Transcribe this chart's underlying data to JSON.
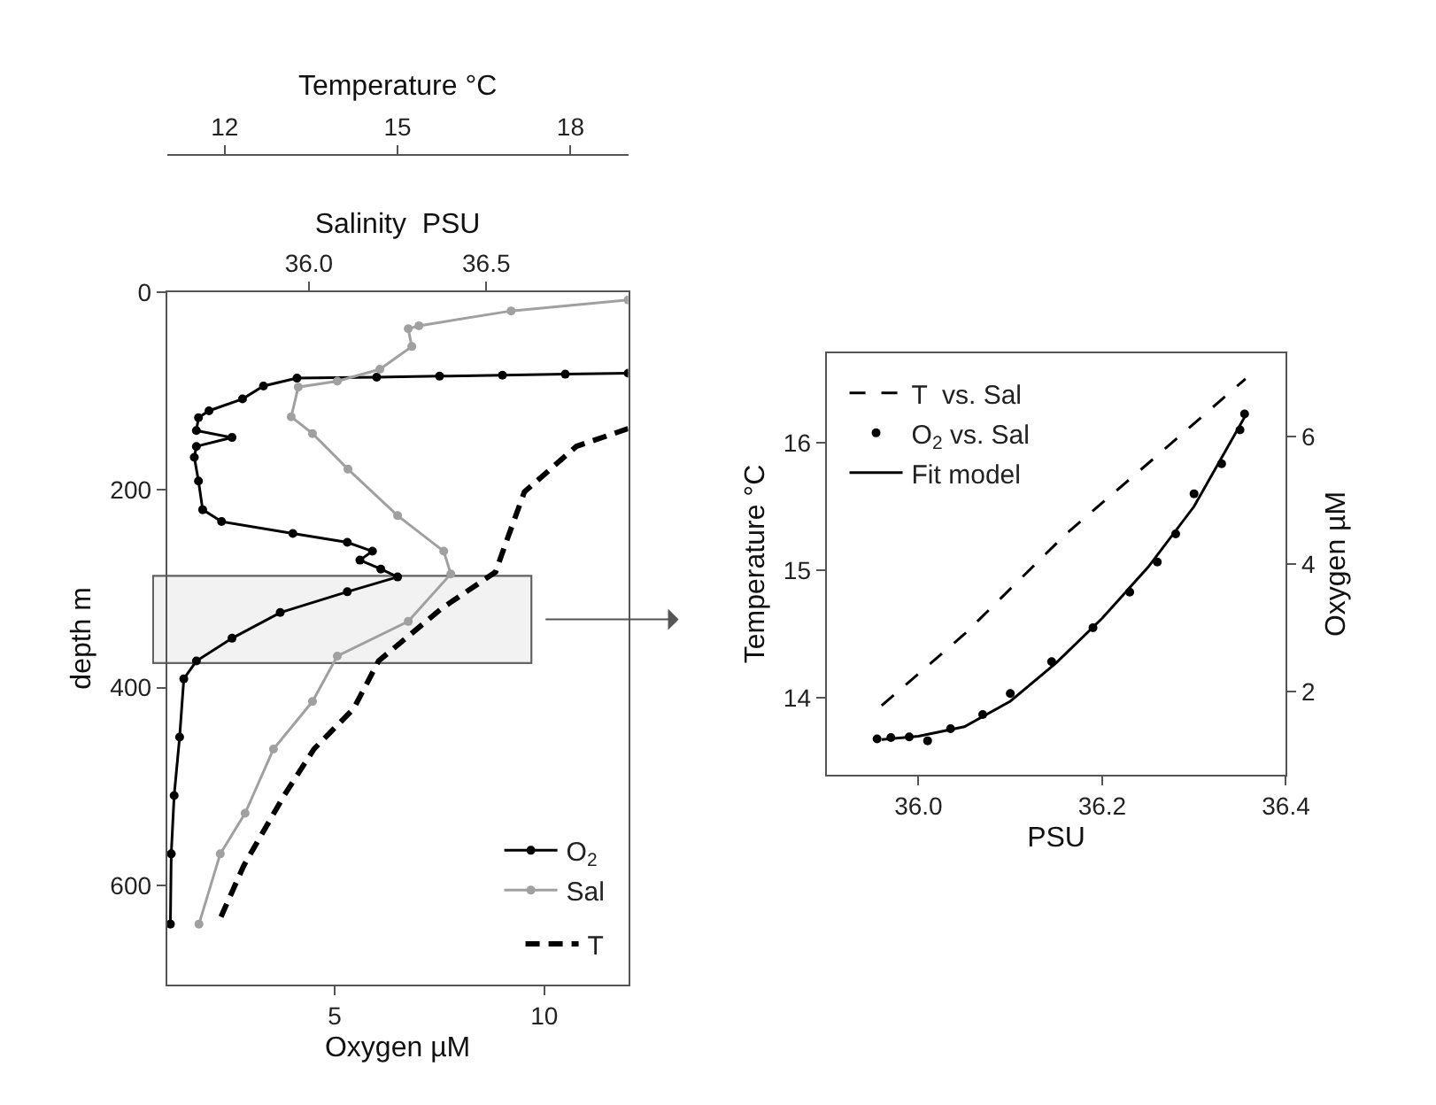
{
  "chart_data": [
    {
      "type": "line",
      "xlabel": "Oxygen µM",
      "ylabel": "depth m",
      "x2label": "Salinity  PSU",
      "xlim": [
        1,
        12
      ],
      "xticks": [
        5,
        10
      ],
      "x2lim": [
        35.6,
        36.9
      ],
      "x2ticks": [
        {
          "value": 36,
          "label": "36.0"
        },
        36.5
      ],
      "ylim": [
        700,
        0
      ],
      "yticks": [
        0,
        200,
        400,
        600
      ],
      "legend": "bottom right",
      "grid": false,
      "bands": [
        {
          "axis": "y",
          "from": 287,
          "to": 375,
          "color": "#606060"
        }
      ],
      "series": [
        {
          "name": "O$_{2}$",
          "color": "#000000",
          "marker": "circle",
          "line_style": "solid",
          "x": [
            12.0,
            10.5,
            9.0,
            7.5,
            6.0,
            4.1,
            3.3,
            2.8,
            2.0,
            1.75,
            1.7,
            2.55,
            1.7,
            1.65,
            1.75,
            1.85,
            2.3,
            4.0,
            5.3,
            5.9,
            5.6,
            6.1,
            6.5,
            5.3,
            3.7,
            2.55,
            1.7,
            1.4,
            1.3,
            1.17,
            1.1,
            1.08
          ],
          "values": [
            82,
            83,
            84,
            85,
            86,
            87,
            95,
            108,
            120,
            127,
            140,
            147,
            156,
            167,
            191,
            220,
            232,
            244,
            253,
            262,
            271,
            280,
            288,
            303,
            324,
            350,
            373,
            391,
            450,
            509,
            568,
            639
          ]
        },
        {
          "name": "Sal",
          "color": "#a0a0a0",
          "marker": "circle",
          "line_style": "solid",
          "axis": "x2",
          "x": [
            36.9,
            36.57,
            36.31,
            36.28,
            36.29,
            36.2,
            36.08,
            35.97,
            35.95,
            36.01,
            36.11,
            36.25,
            36.38,
            36.4,
            36.28,
            36.08,
            36.01,
            35.9,
            35.82,
            35.75,
            35.69
          ],
          "values": [
            8,
            19,
            34,
            37,
            55,
            78,
            90,
            96,
            126,
            143,
            179,
            226,
            262,
            285,
            333,
            368,
            414,
            462,
            527,
            568,
            639
          ]
        }
      ]
    },
    {
      "type": "line",
      "xlabel": "Temperature °C",
      "xlim": [
        11,
        19
      ],
      "xticks": [
        12,
        15,
        18
      ],
      "ylim": [
        700,
        0
      ],
      "tick_labels": "x",
      "legend": "bottom right",
      "grid": false,
      "series": [
        {
          "name": "T",
          "color": "#000000",
          "marker": "none",
          "line_style": "dashed",
          "x": [
            19.0,
            18.1,
            17.2,
            16.9,
            16.7,
            15.76,
            14.67,
            14.24,
            13.55,
            13.03,
            12.33,
            11.88
          ],
          "values": [
            138,
            156,
            202,
            250,
            283,
            320,
            373,
            421,
            462,
            509,
            580,
            639
          ]
        }
      ]
    },
    {
      "type": "line",
      "xlabel": "PSU",
      "ylabel": "Temperature °C",
      "y2label": "Oxygen µM",
      "xlim": [
        35.9,
        36.4
      ],
      "xticks": [
        {
          "value": 36,
          "label": "36.0"
        },
        36.2,
        36.4
      ],
      "ylim": [
        13.4,
        16.7
      ],
      "yticks": [
        14,
        15,
        16
      ],
      "y2lim": [
        0.7,
        7.3
      ],
      "y2ticks": [
        2,
        4,
        6
      ],
      "legend": "top left",
      "grid": false,
      "series": [
        {
          "name": "T  vs. Sal",
          "color": "#000000",
          "line_style": "dashed",
          "marker": "none",
          "x": [
            35.96,
            36.05,
            36.16,
            36.26,
            36.356
          ],
          "values": [
            13.94,
            14.5,
            15.28,
            15.9,
            16.5
          ]
        },
        {
          "name": "O$_{2}$ vs. Sal",
          "type": "scatter",
          "color": "#000000",
          "marker": "circle",
          "axis": "y2",
          "x": [
            35.955,
            35.97,
            35.99,
            36.01,
            36.035,
            36.07,
            36.1,
            36.145,
            36.19,
            36.23,
            36.26,
            36.28,
            36.3,
            36.33,
            36.35,
            36.355
          ],
          "values": [
            1.26,
            1.28,
            1.29,
            1.23,
            1.42,
            1.64,
            1.97,
            2.47,
            3.0,
            3.56,
            4.03,
            4.47,
            5.1,
            5.57,
            6.1,
            6.35
          ]
        },
        {
          "name": "Fit model",
          "color": "#000000",
          "line_style": "solid",
          "marker": "none",
          "axis": "y2",
          "x": [
            35.96,
            36.0,
            36.05,
            36.1,
            36.15,
            36.2,
            36.25,
            36.3,
            36.355
          ],
          "values": [
            1.25,
            1.3,
            1.45,
            1.85,
            2.45,
            3.15,
            3.95,
            4.9,
            6.3
          ]
        }
      ]
    }
  ]
}
